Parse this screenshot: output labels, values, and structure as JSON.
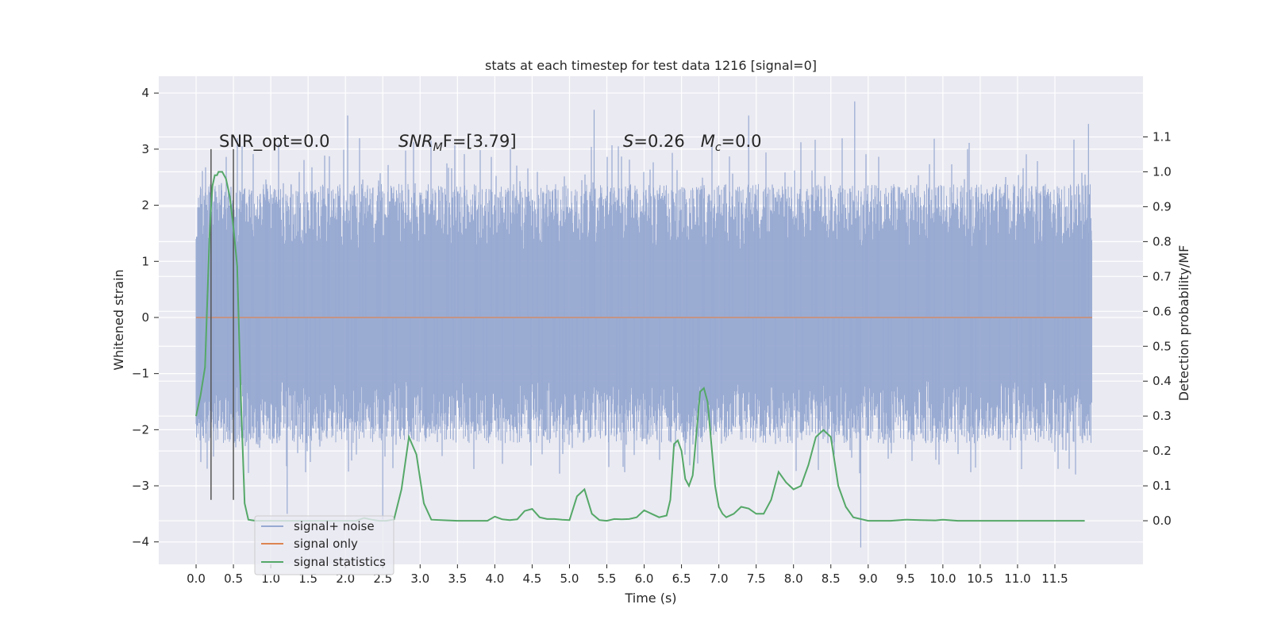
{
  "chart_data": {
    "type": "line",
    "title": "stats at each timestep for test data 1216 [signal=0]",
    "xlabel": "Time (s)",
    "ylabel": "Whitened strain",
    "y2label": "Detection probability/MF",
    "xlim": [
      -0.5,
      12.68
    ],
    "ylim": [
      -4.4,
      4.3
    ],
    "y2lim": [
      -0.125,
      1.274
    ],
    "x_ticks": [
      0.0,
      0.5,
      1.0,
      1.5,
      2.0,
      2.5,
      3.0,
      3.5,
      4.0,
      4.5,
      5.0,
      5.5,
      6.0,
      6.5,
      7.0,
      7.5,
      8.0,
      8.5,
      9.0,
      9.5,
      10.0,
      10.5,
      11.0,
      11.5
    ],
    "x_tick_labels": [
      "0.0",
      "0.5",
      "1.0",
      "1.5",
      "2.0",
      "2.5",
      "3.0",
      "3.5",
      "4.0",
      "4.5",
      "5.0",
      "5.5",
      "6.0",
      "6.5",
      "7.0",
      "7.5",
      "8.0",
      "8.5",
      "9.0",
      "9.5",
      "10.0",
      "10.5",
      "11.0",
      "11.5"
    ],
    "y_ticks": [
      -4,
      -3,
      -2,
      -1,
      0,
      1,
      2,
      3,
      4
    ],
    "y_tick_labels": [
      "−4",
      "−3",
      "−2",
      "−1",
      "0",
      "1",
      "2",
      "3",
      "4"
    ],
    "y2_ticks": [
      0.0,
      0.1,
      0.2,
      0.3,
      0.4,
      0.5,
      0.6,
      0.7,
      0.8,
      0.9,
      1.0,
      1.1
    ],
    "y2_tick_labels": [
      "0.0",
      "0.1",
      "0.2",
      "0.3",
      "0.4",
      "0.5",
      "0.6",
      "0.7",
      "0.8",
      "0.9",
      "1.0",
      "1.1"
    ],
    "grid": true,
    "legend_placement": "lower-left",
    "series": [
      {
        "name": "signal+ noise",
        "color": "#97A9D1",
        "x_range": [
          0.0,
          12.0
        ],
        "typical_range": [
          -1.6,
          1.7
        ],
        "notable_extremes": [
          {
            "x": 1.22,
            "y": -3.5
          },
          {
            "x": 2.03,
            "y": 3.6
          },
          {
            "x": 2.5,
            "y": -3.6
          },
          {
            "x": 5.33,
            "y": 3.7
          },
          {
            "x": 7.4,
            "y": 3.6
          },
          {
            "x": 8.82,
            "y": 3.85
          },
          {
            "x": 8.9,
            "y": -4.1
          },
          {
            "x": 11.95,
            "y": 3.45
          }
        ]
      },
      {
        "name": "signal only",
        "color": "#DD8452",
        "x": [
          0.0,
          12.0
        ],
        "y": [
          0.0,
          0.0
        ]
      },
      {
        "name": "signal statistics",
        "color": "#55A868",
        "axis": "right",
        "x": [
          0.0,
          0.06,
          0.12,
          0.18,
          0.2,
          0.22,
          0.25,
          0.28,
          0.3,
          0.35,
          0.4,
          0.45,
          0.5,
          0.55,
          0.6,
          0.65,
          0.7,
          0.8,
          1.0,
          1.5,
          2.0,
          2.15,
          2.25,
          2.35,
          2.45,
          2.55,
          2.65,
          2.75,
          2.85,
          2.95,
          3.05,
          3.15,
          3.5,
          3.9,
          4.0,
          4.1,
          4.2,
          4.3,
          4.4,
          4.5,
          4.6,
          4.7,
          4.8,
          4.9,
          5.0,
          5.1,
          5.2,
          5.3,
          5.4,
          5.5,
          5.6,
          5.7,
          5.8,
          5.9,
          6.0,
          6.1,
          6.2,
          6.3,
          6.35,
          6.4,
          6.45,
          6.5,
          6.55,
          6.6,
          6.65,
          6.7,
          6.75,
          6.8,
          6.85,
          6.9,
          6.95,
          7.0,
          7.05,
          7.1,
          7.2,
          7.3,
          7.4,
          7.5,
          7.6,
          7.7,
          7.8,
          7.9,
          8.0,
          8.1,
          8.2,
          8.3,
          8.4,
          8.5,
          8.6,
          8.7,
          8.8,
          9.0,
          9.3,
          9.5,
          9.7,
          9.9,
          10.0,
          10.2,
          10.5,
          11.0,
          11.5,
          11.9
        ],
        "y": [
          0.3,
          0.36,
          0.44,
          0.82,
          0.9,
          0.96,
          0.99,
          0.99,
          1.0,
          1.0,
          0.98,
          0.93,
          0.84,
          0.73,
          0.35,
          0.05,
          0.003,
          0.0,
          0.0,
          0.0,
          0.0,
          0.0,
          0.008,
          0.003,
          0.0,
          0.0,
          0.004,
          0.09,
          0.24,
          0.19,
          0.05,
          0.003,
          0.0,
          0.0,
          0.012,
          0.004,
          0.002,
          0.004,
          0.028,
          0.034,
          0.01,
          0.005,
          0.005,
          0.003,
          0.002,
          0.07,
          0.09,
          0.02,
          0.002,
          0.0,
          0.005,
          0.004,
          0.005,
          0.01,
          0.03,
          0.02,
          0.01,
          0.015,
          0.06,
          0.22,
          0.23,
          0.2,
          0.12,
          0.1,
          0.13,
          0.25,
          0.37,
          0.38,
          0.34,
          0.22,
          0.1,
          0.04,
          0.02,
          0.01,
          0.02,
          0.04,
          0.035,
          0.02,
          0.02,
          0.06,
          0.14,
          0.11,
          0.09,
          0.1,
          0.16,
          0.24,
          0.26,
          0.24,
          0.1,
          0.04,
          0.01,
          0.0,
          0.0,
          0.003,
          0.002,
          0.001,
          0.003,
          0.0,
          0.0,
          0.0,
          0.0,
          0.0
        ]
      }
    ],
    "vertical_lines": [
      {
        "x": 0.2,
        "y_top": 3.0,
        "y_bottom": -3.25,
        "color": "#555555"
      },
      {
        "x": 0.5,
        "y_top": 3.0,
        "y_bottom": -3.25,
        "color": "#555555"
      }
    ],
    "annotations": [
      {
        "id": "snr_opt",
        "text": "SNR_opt=0.0",
        "x": 0.2,
        "y": 3.1
      },
      {
        "id": "snr_mf",
        "text": "SNR_MF=[3.79]",
        "x": 2.6,
        "y": 3.1
      },
      {
        "id": "stat_mc",
        "text": "S=0.26   M_c=0.0",
        "x": 5.6,
        "y": 3.1
      }
    ],
    "legend_entries": [
      {
        "label": "signal+ noise",
        "color": "#97A9D1"
      },
      {
        "label": "signal only",
        "color": "#DD8452"
      },
      {
        "label": "signal statistics",
        "color": "#55A868"
      }
    ]
  },
  "annotation_parts": {
    "snr_opt": "SNR_opt=0.0",
    "snr_mf_main": "SNR",
    "snr_mf_sub": "M",
    "snr_mf_rest": "F=[3.79]",
    "s_main": "S",
    "s_rest": "=0.26",
    "mc_main": "M",
    "mc_sub": "c",
    "mc_rest": "=0.0"
  }
}
